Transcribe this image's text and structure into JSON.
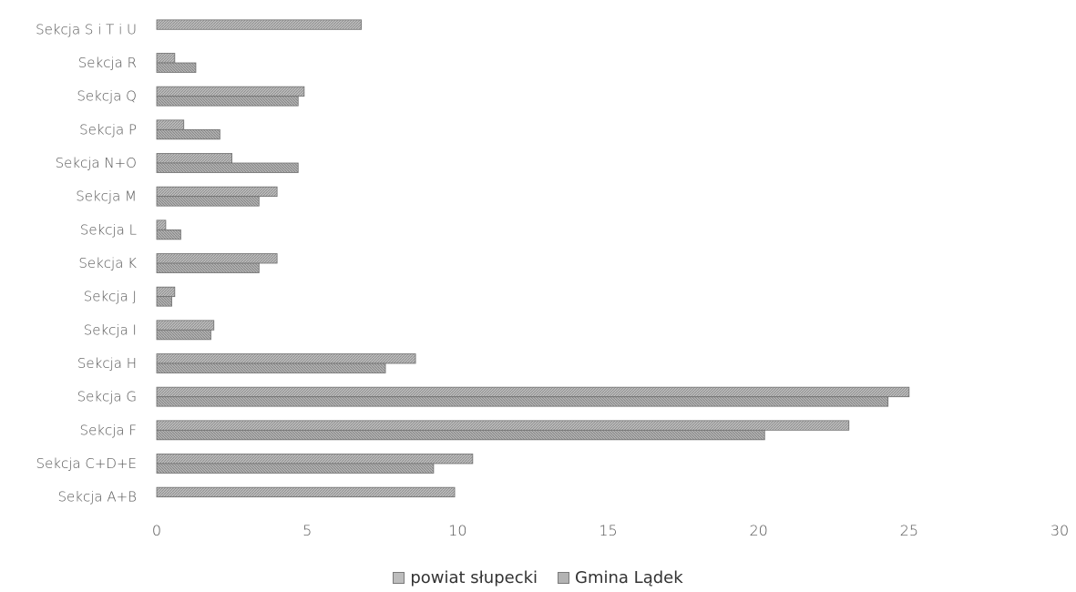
{
  "chart_data": {
    "type": "bar",
    "orientation": "horizontal",
    "categories": [
      "Sekcja A+B",
      "Sekcja C+D+E",
      "Sekcja F",
      "Sekcja G",
      "Sekcja H",
      "Sekcja I",
      "Sekcja J",
      "Sekcja K",
      "Sekcja L",
      "Sekcja M",
      "Sekcja N+O",
      "Sekcja P",
      "Sekcja Q",
      "Sekcja R",
      "Sekcja S i T i U"
    ],
    "series": [
      {
        "name": "powiat słupecki",
        "values": [
          9.9,
          10.5,
          23.0,
          25.0,
          8.6,
          1.9,
          0.6,
          4.0,
          0.3,
          4.0,
          2.5,
          0.9,
          4.9,
          0.6,
          6.8
        ]
      },
      {
        "name": "Gmina Lądek",
        "values": [
          0,
          9.2,
          20.2,
          24.3,
          7.6,
          1.8,
          0.5,
          3.4,
          0.8,
          3.4,
          4.7,
          2.1,
          4.7,
          1.3,
          0
        ]
      }
    ],
    "xlim": [
      0,
      30
    ],
    "xticks": [
      "0",
      "5",
      "10",
      "15",
      "20",
      "25",
      "30"
    ],
    "grid": false,
    "legend_position": "bottom",
    "colors": [
      "#b0b0b0",
      "#a6a6a6"
    ]
  }
}
